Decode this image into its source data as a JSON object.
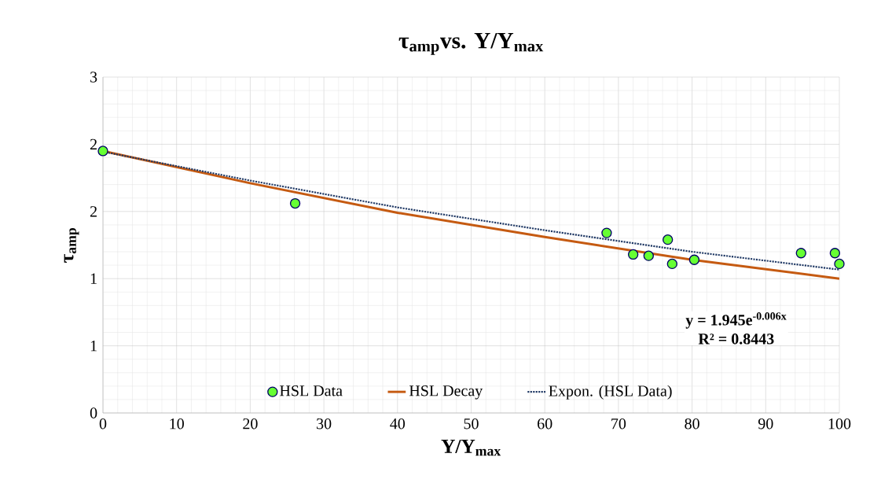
{
  "chart_data": {
    "type": "scatter",
    "title": "τ$_{amp}$vs. Y/Y$_{max}$",
    "xlabel": "Y/Y$_{max}$",
    "ylabel": "τ$_{amp}$",
    "xlim": [
      0,
      100
    ],
    "xticks": [
      0,
      10,
      20,
      30,
      40,
      50,
      60,
      70,
      80,
      90,
      100
    ],
    "ylim": [
      0,
      2.5
    ],
    "yticks": [
      {
        "value": 0,
        "label": "0"
      },
      {
        "value": 0.5,
        "label": "1"
      },
      {
        "value": 1,
        "label": "1"
      },
      {
        "value": 1.5,
        "label": "2"
      },
      {
        "value": 2,
        "label": "2"
      },
      {
        "value": 2.5,
        "label": "3"
      }
    ],
    "grid": true,
    "legend": "bottom",
    "series": [
      {
        "name": "HSL Data",
        "type": "scatter",
        "marker": "circle",
        "color": "#66ff33",
        "x": [
          0,
          26.1,
          68.4,
          72.0,
          74.1,
          76.7,
          77.3,
          80.3,
          94.8,
          99.4,
          100
        ],
        "values": [
          1.95,
          1.56,
          1.34,
          1.18,
          1.17,
          1.29,
          1.11,
          1.14,
          1.19,
          1.19,
          1.11
        ]
      },
      {
        "name": "HSL Decay",
        "type": "line",
        "marker": "none",
        "line_style": "solid",
        "color": "#c55a11",
        "x": [
          0,
          20,
          40,
          60,
          80,
          100
        ],
        "values": [
          1.95,
          1.71,
          1.49,
          1.31,
          1.14,
          1.0
        ]
      },
      {
        "name": "Expon. (HSL Data)",
        "type": "line",
        "marker": "none",
        "line_style": "dotted",
        "color": "#1f3864",
        "x": [
          0,
          20,
          40,
          60,
          80,
          100
        ],
        "values": [
          1.945,
          1.73,
          1.53,
          1.36,
          1.2,
          1.067
        ]
      }
    ],
    "annotations": [
      "y = 1.945e$^{-0.006x}$",
      "R² = 0.8443"
    ]
  }
}
